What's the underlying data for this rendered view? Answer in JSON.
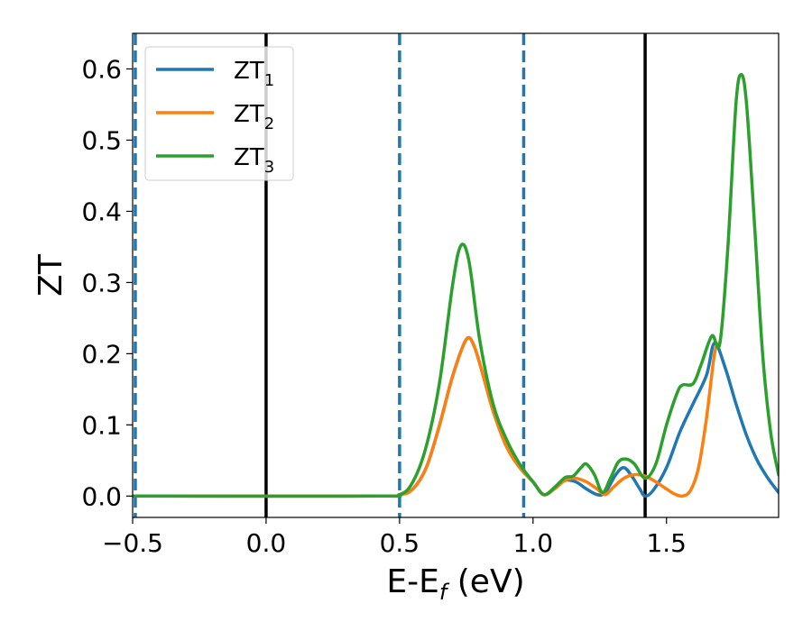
{
  "chart_data": {
    "type": "line",
    "xlabel": "E-E",
    "xlabel_subscript": "f",
    "xlabel_unit": " (eV)",
    "ylabel": "ZT",
    "xlim": [
      -0.5,
      1.92
    ],
    "ylim": [
      -0.03,
      0.65
    ],
    "grid": false,
    "legend_position": "top-left",
    "x_ticks": [
      -0.5,
      0.0,
      0.5,
      1.0,
      1.5
    ],
    "x_tick_labels": [
      "−0.5",
      "0.0",
      "0.5",
      "1.0",
      "1.5"
    ],
    "y_ticks": [
      0.0,
      0.1,
      0.2,
      0.3,
      0.4,
      0.5,
      0.6
    ],
    "y_tick_labels": [
      "0.0",
      "0.1",
      "0.2",
      "0.3",
      "0.4",
      "0.5",
      "0.6"
    ],
    "vertical_lines": [
      {
        "x": -0.49,
        "style": "dashed",
        "color": "#1f77b4"
      },
      {
        "x": 0.0,
        "style": "solid",
        "color": "#000000"
      },
      {
        "x": 0.5,
        "style": "dashed",
        "color": "#1f77b4"
      },
      {
        "x": 0.965,
        "style": "dashed",
        "color": "#1f77b4"
      },
      {
        "x": 1.42,
        "style": "solid",
        "color": "#000000"
      }
    ],
    "series": [
      {
        "name": "ZT",
        "subscript": "1",
        "color": "#1f77b4",
        "points": [
          [
            -0.5,
            0
          ],
          [
            0.4,
            0
          ],
          [
            0.5,
            0.002
          ],
          [
            0.55,
            0.01
          ],
          [
            0.6,
            0.04
          ],
          [
            0.65,
            0.1
          ],
          [
            0.7,
            0.17
          ],
          [
            0.75,
            0.22
          ],
          [
            0.78,
            0.21
          ],
          [
            0.82,
            0.16
          ],
          [
            0.85,
            0.12
          ],
          [
            0.9,
            0.07
          ],
          [
            0.95,
            0.04
          ],
          [
            1.0,
            0.02
          ],
          [
            1.04,
            0.002
          ],
          [
            1.08,
            0.01
          ],
          [
            1.12,
            0.022
          ],
          [
            1.16,
            0.02
          ],
          [
            1.2,
            0.01
          ],
          [
            1.24,
            0.002
          ],
          [
            1.27,
            0.005
          ],
          [
            1.31,
            0.03
          ],
          [
            1.34,
            0.04
          ],
          [
            1.37,
            0.028
          ],
          [
            1.4,
            0.01
          ],
          [
            1.42,
            0.0
          ],
          [
            1.45,
            0.008
          ],
          [
            1.5,
            0.04
          ],
          [
            1.55,
            0.09
          ],
          [
            1.6,
            0.13
          ],
          [
            1.65,
            0.17
          ],
          [
            1.68,
            0.215
          ],
          [
            1.72,
            0.18
          ],
          [
            1.76,
            0.13
          ],
          [
            1.8,
            0.085
          ],
          [
            1.84,
            0.05
          ],
          [
            1.88,
            0.025
          ],
          [
            1.92,
            0.005
          ]
        ]
      },
      {
        "name": "ZT",
        "subscript": "2",
        "color": "#ff7f0e",
        "points": [
          [
            -0.5,
            0
          ],
          [
            0.4,
            0
          ],
          [
            0.5,
            0.002
          ],
          [
            0.55,
            0.01
          ],
          [
            0.6,
            0.04
          ],
          [
            0.65,
            0.1
          ],
          [
            0.7,
            0.17
          ],
          [
            0.75,
            0.22
          ],
          [
            0.78,
            0.21
          ],
          [
            0.82,
            0.16
          ],
          [
            0.85,
            0.12
          ],
          [
            0.9,
            0.07
          ],
          [
            0.95,
            0.04
          ],
          [
            1.0,
            0.02
          ],
          [
            1.04,
            0.002
          ],
          [
            1.08,
            0.01
          ],
          [
            1.12,
            0.022
          ],
          [
            1.16,
            0.025
          ],
          [
            1.2,
            0.02
          ],
          [
            1.24,
            0.01
          ],
          [
            1.27,
            0.002
          ],
          [
            1.3,
            0.012
          ],
          [
            1.34,
            0.025
          ],
          [
            1.38,
            0.03
          ],
          [
            1.42,
            0.028
          ],
          [
            1.46,
            0.02
          ],
          [
            1.5,
            0.01
          ],
          [
            1.53,
            0.003
          ],
          [
            1.56,
            0.0
          ],
          [
            1.59,
            0.008
          ],
          [
            1.62,
            0.04
          ],
          [
            1.65,
            0.11
          ],
          [
            1.68,
            0.2
          ],
          [
            1.7,
            0.215
          ]
        ]
      },
      {
        "name": "ZT",
        "subscript": "3",
        "color": "#2ca02c",
        "points": [
          [
            -0.5,
            0
          ],
          [
            0.4,
            0
          ],
          [
            0.5,
            0.002
          ],
          [
            0.55,
            0.02
          ],
          [
            0.6,
            0.07
          ],
          [
            0.65,
            0.16
          ],
          [
            0.7,
            0.3
          ],
          [
            0.73,
            0.352
          ],
          [
            0.76,
            0.33
          ],
          [
            0.8,
            0.22
          ],
          [
            0.85,
            0.13
          ],
          [
            0.9,
            0.08
          ],
          [
            0.95,
            0.045
          ],
          [
            1.0,
            0.02
          ],
          [
            1.04,
            0.002
          ],
          [
            1.08,
            0.012
          ],
          [
            1.12,
            0.026
          ],
          [
            1.15,
            0.028
          ],
          [
            1.18,
            0.04
          ],
          [
            1.2,
            0.045
          ],
          [
            1.23,
            0.03
          ],
          [
            1.26,
            0.005
          ],
          [
            1.29,
            0.025
          ],
          [
            1.32,
            0.048
          ],
          [
            1.35,
            0.052
          ],
          [
            1.38,
            0.045
          ],
          [
            1.42,
            0.025
          ],
          [
            1.46,
            0.045
          ],
          [
            1.5,
            0.1
          ],
          [
            1.54,
            0.145
          ],
          [
            1.56,
            0.156
          ],
          [
            1.6,
            0.158
          ],
          [
            1.63,
            0.185
          ],
          [
            1.67,
            0.225
          ],
          [
            1.7,
            0.215
          ],
          [
            1.73,
            0.35
          ],
          [
            1.76,
            0.55
          ],
          [
            1.78,
            0.592
          ],
          [
            1.8,
            0.55
          ],
          [
            1.83,
            0.38
          ],
          [
            1.86,
            0.2
          ],
          [
            1.89,
            0.09
          ],
          [
            1.92,
            0.03
          ]
        ]
      }
    ]
  }
}
